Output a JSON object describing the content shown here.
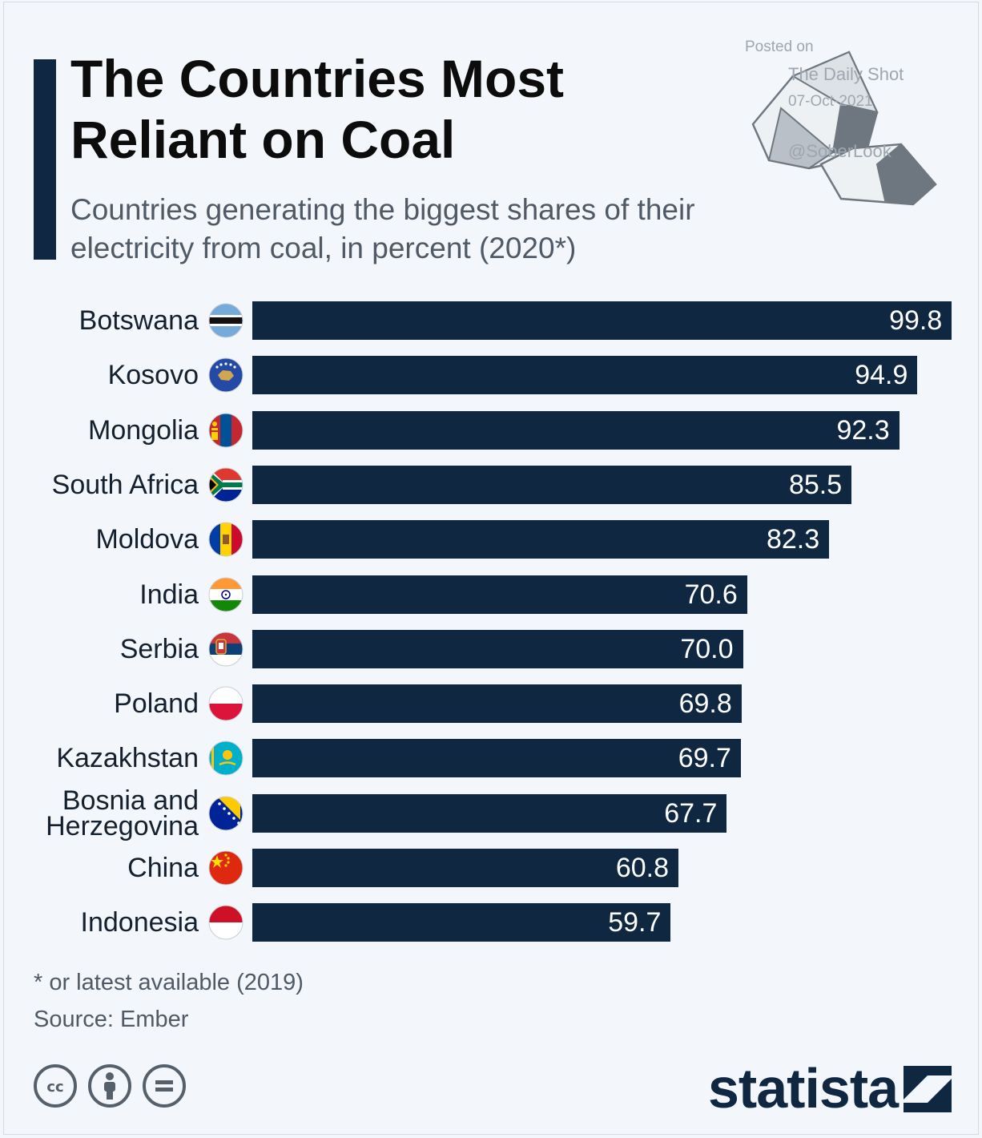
{
  "header": {
    "title": "The Countries Most Reliant on Coal",
    "subtitle": "Countries generating the biggest shares of their electricity from coal, in percent (2020*)"
  },
  "watermark": {
    "line1": "Posted on",
    "line2": "The Daily Shot",
    "line3": "07-Oct-2021",
    "line4": "@SoberLook"
  },
  "chart_data": {
    "type": "bar",
    "orientation": "horizontal",
    "title": "The Countries Most Reliant on Coal",
    "subtitle": "Countries generating the biggest shares of their electricity from coal, in percent (2020*)",
    "categories": [
      "Botswana",
      "Kosovo",
      "Mongolia",
      "South Africa",
      "Moldova",
      "India",
      "Serbia",
      "Poland",
      "Kazakhstan",
      "Bosnia and\nHerzegovina",
      "China",
      "Indonesia"
    ],
    "value_labels": [
      "99.8",
      "94.9",
      "92.3",
      "85.5",
      "82.3",
      "70.6",
      "70.0",
      "69.8",
      "69.7",
      "67.7",
      "60.8",
      "59.7"
    ],
    "values": [
      99.8,
      94.9,
      92.3,
      85.5,
      82.3,
      70.6,
      70.0,
      69.8,
      69.7,
      67.7,
      60.8,
      59.7
    ],
    "flag_icons": [
      "botswana-flag-icon",
      "kosovo-flag-icon",
      "mongolia-flag-icon",
      "south-africa-flag-icon",
      "moldova-flag-icon",
      "india-flag-icon",
      "serbia-flag-icon",
      "poland-flag-icon",
      "kazakhstan-flag-icon",
      "bosnia-flag-icon",
      "china-flag-icon",
      "indonesia-flag-icon"
    ],
    "xlim": [
      0,
      100
    ],
    "bar_color": "#0f2741",
    "grid": false
  },
  "footer": {
    "footnote": "* or latest available (2019)",
    "source": "Source: Ember",
    "brand": "statista",
    "license_icons": [
      "cc-icon",
      "attribution-icon",
      "no-derivatives-icon"
    ]
  }
}
